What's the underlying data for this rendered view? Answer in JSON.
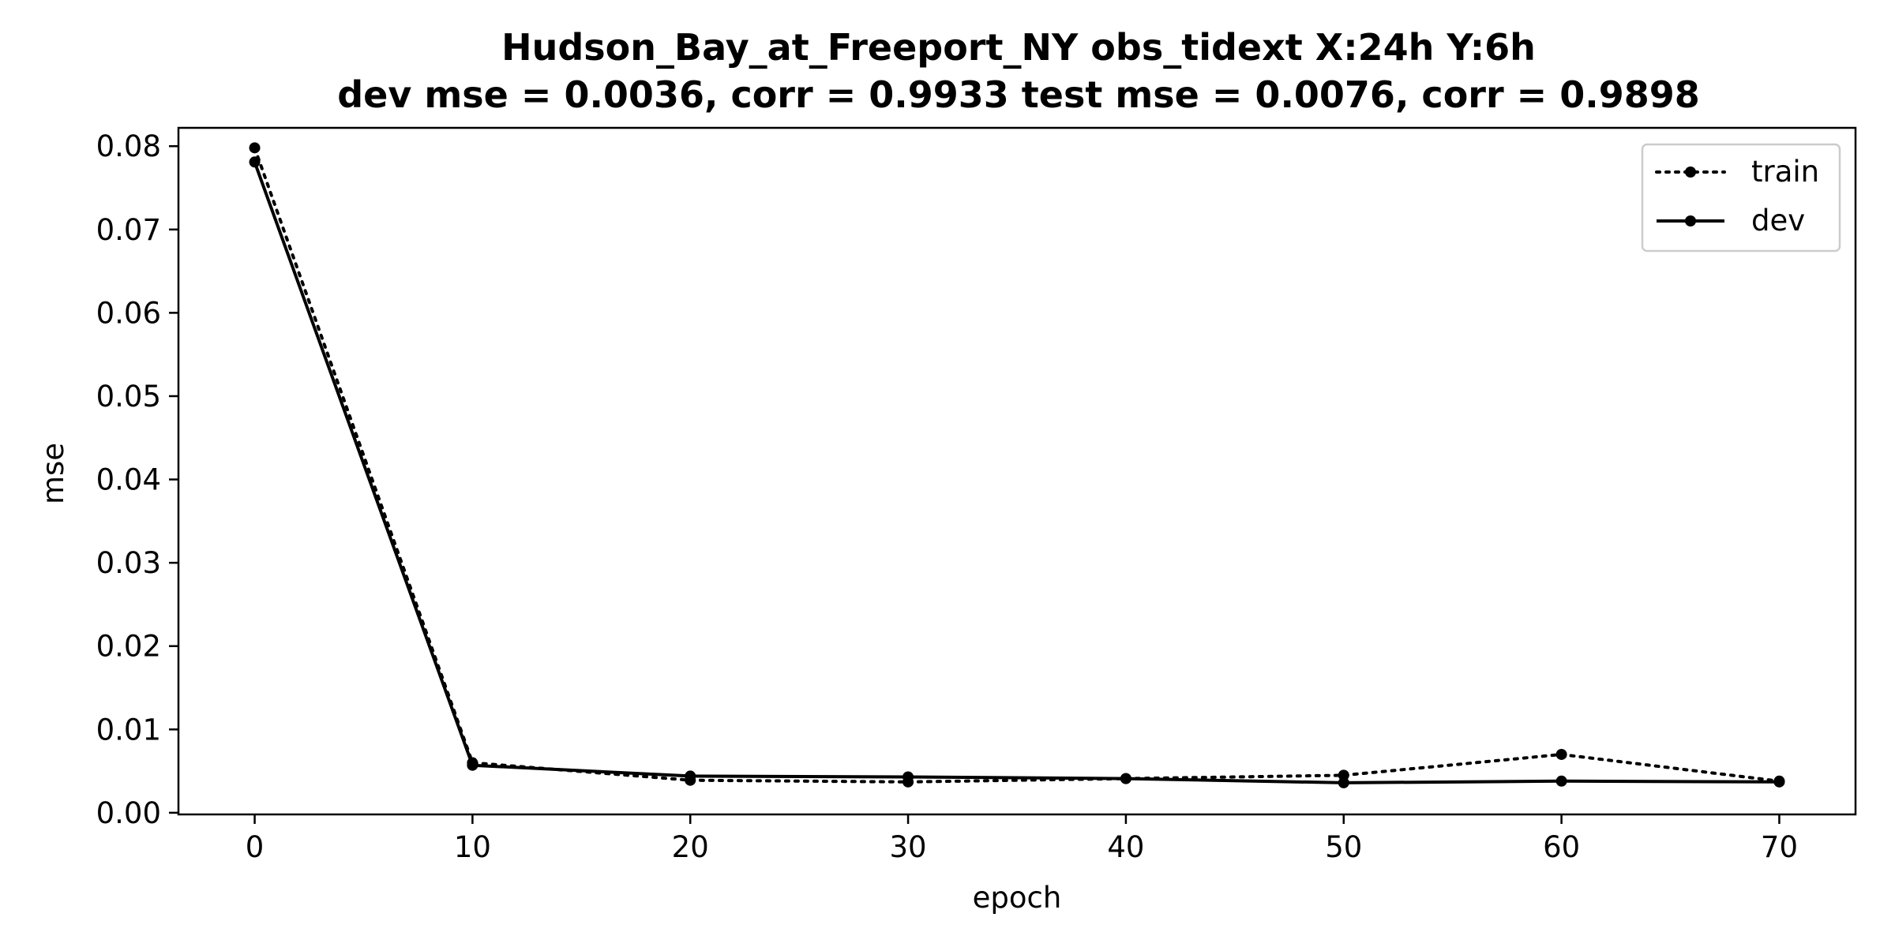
{
  "chart_data": {
    "type": "line",
    "title_line1": "Hudson_Bay_at_Freeport_NY   obs_tidext   X:24h   Y:6h",
    "title_line2": "dev mse = 0.0036, corr = 0.9933   test mse = 0.0076, corr = 0.9898",
    "xlabel": "epoch",
    "ylabel": "mse",
    "xlim": [
      -3.5,
      73.5
    ],
    "ylim": [
      -0.0002,
      0.0822
    ],
    "xticks": [
      0,
      10,
      20,
      30,
      40,
      50,
      60,
      70
    ],
    "xtick_labels": [
      "0",
      "10",
      "20",
      "30",
      "40",
      "50",
      "60",
      "70"
    ],
    "yticks": [
      0.0,
      0.01,
      0.02,
      0.03,
      0.04,
      0.05,
      0.06,
      0.07,
      0.08
    ],
    "ytick_labels": [
      "0.00",
      "0.01",
      "0.02",
      "0.03",
      "0.04",
      "0.05",
      "0.06",
      "0.07",
      "0.08"
    ],
    "grid": false,
    "legend_position": "top-right",
    "x": [
      0,
      10,
      20,
      30,
      40,
      50,
      60,
      70
    ],
    "series": [
      {
        "name": "train",
        "line_style": "dotted",
        "color": "#000000",
        "values": [
          0.0798,
          0.006,
          0.0039,
          0.0037,
          0.0041,
          0.0045,
          0.007,
          0.0038
        ]
      },
      {
        "name": "dev",
        "line_style": "solid",
        "color": "#000000",
        "values": [
          0.0781,
          0.0057,
          0.0044,
          0.0043,
          0.0041,
          0.0036,
          0.0038,
          0.0037
        ]
      }
    ]
  }
}
